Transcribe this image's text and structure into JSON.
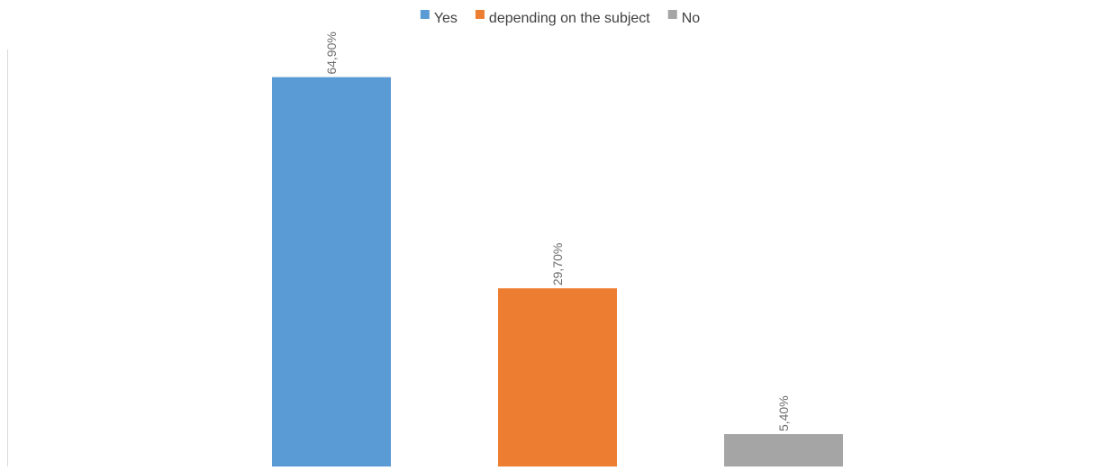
{
  "chart_data": {
    "type": "bar",
    "title": "",
    "xlabel": "",
    "ylabel": "",
    "series": [
      {
        "name": "Yes",
        "value": 64.9,
        "label": "64,90%",
        "color": "#5b9bd5"
      },
      {
        "name": "depending on the subject",
        "value": 29.7,
        "label": "29,70%",
        "color": "#ed7d31"
      },
      {
        "name": "No",
        "value": 5.4,
        "label": "5,40%",
        "color": "#a5a5a5"
      }
    ],
    "ylim": [
      0,
      66.5
    ],
    "grid": false,
    "legend_position": "top-center",
    "data_label_color": "#6d6d6d",
    "axis_color": "#d9d9d9"
  }
}
